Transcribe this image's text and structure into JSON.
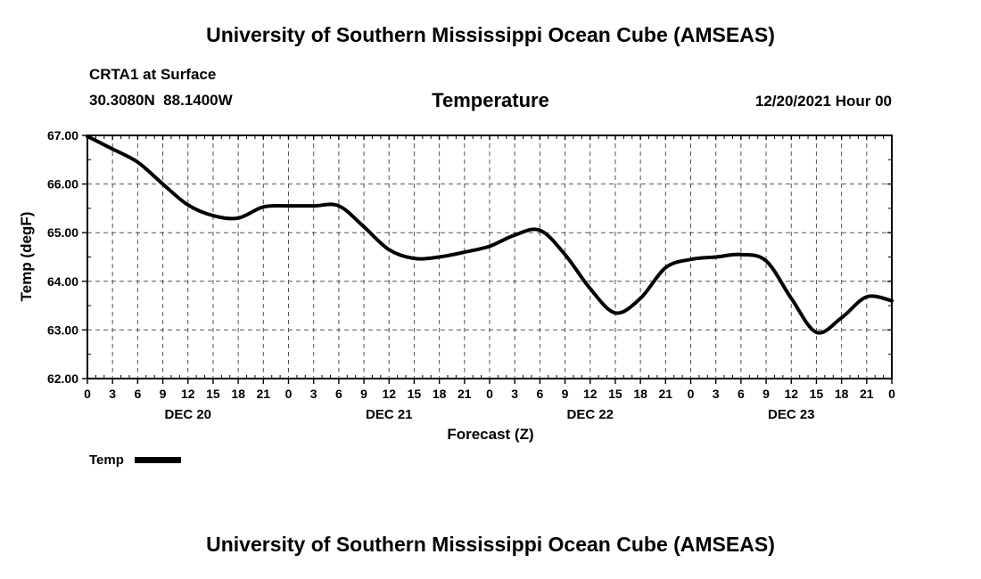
{
  "page": {
    "title_top": "University of Southern Mississippi Ocean Cube (AMSEAS)",
    "title_bottom": "University of Southern Mississippi Ocean Cube (AMSEAS)"
  },
  "header": {
    "station": "CRTA1 at Surface",
    "coords": "30.3080N  88.1400W",
    "plot_title": "Temperature",
    "run_date": "12/20/2021 Hour 00"
  },
  "chart_data": {
    "type": "line",
    "title": "Temperature",
    "xlabel": "Forecast (Z)",
    "ylabel": "Temp (degF)",
    "xlim": [
      0,
      96
    ],
    "ylim": [
      62,
      67
    ],
    "grid": "dashed",
    "line_color": "#000000",
    "grid_color": "#555555",
    "y_tick_values": [
      62,
      63,
      64,
      65,
      66,
      67
    ],
    "y_tick_labels": [
      "62.00",
      "63.00",
      "64.00",
      "65.00",
      "66.00",
      "67.00"
    ],
    "x_tick_hours": [
      0,
      3,
      6,
      9,
      12,
      15,
      18,
      21,
      24,
      27,
      30,
      33,
      36,
      39,
      42,
      45,
      48,
      51,
      54,
      57,
      60,
      63,
      66,
      69,
      72,
      75,
      78,
      81,
      84,
      87,
      90,
      93,
      96
    ],
    "x_tick_labels": [
      "0",
      "3",
      "6",
      "9",
      "12",
      "15",
      "18",
      "21",
      "0",
      "3",
      "6",
      "9",
      "12",
      "15",
      "18",
      "21",
      "0",
      "3",
      "6",
      "9",
      "12",
      "15",
      "18",
      "21",
      "0",
      "3",
      "6",
      "9",
      "12",
      "15",
      "18",
      "21",
      "0"
    ],
    "day_labels": [
      {
        "label": "DEC 20",
        "center_hour": 12
      },
      {
        "label": "DEC 21",
        "center_hour": 36
      },
      {
        "label": "DEC 22",
        "center_hour": 60
      },
      {
        "label": "DEC 23",
        "center_hour": 84
      }
    ],
    "series": [
      {
        "name": "Temp",
        "color": "#000000",
        "width": 4,
        "x": [
          0,
          3,
          6,
          9,
          12,
          15,
          18,
          21,
          24,
          27,
          30,
          33,
          36,
          39,
          42,
          45,
          48,
          51,
          54,
          57,
          60,
          63,
          66,
          69,
          72,
          75,
          78,
          81,
          84,
          87,
          90,
          93,
          96
        ],
        "values": [
          66.98,
          66.72,
          66.45,
          66.0,
          65.57,
          65.35,
          65.3,
          65.53,
          65.55,
          65.55,
          65.55,
          65.12,
          64.65,
          64.47,
          64.5,
          64.6,
          64.72,
          64.95,
          65.05,
          64.55,
          63.85,
          63.35,
          63.65,
          64.28,
          64.45,
          64.5,
          64.55,
          64.42,
          63.65,
          62.95,
          63.25,
          63.68,
          63.6
        ]
      }
    ],
    "legend": {
      "position": "bottom-left",
      "entries": [
        {
          "label": "Temp",
          "color": "#000000"
        }
      ]
    }
  }
}
